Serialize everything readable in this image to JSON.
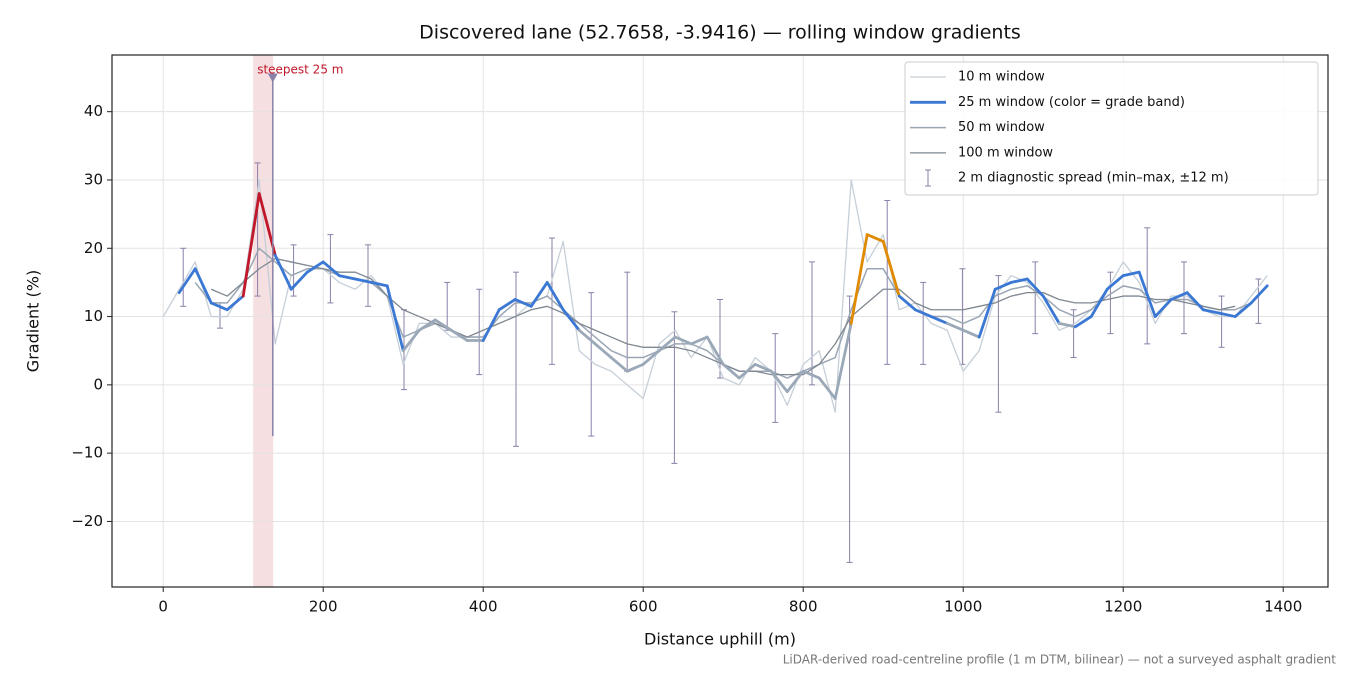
{
  "chart_data": {
    "type": "line",
    "title": "Discovered lane (52.7658, -3.9416) — rolling window gradients",
    "xlabel": "Distance uphill (m)",
    "ylabel": "Gradient (%)",
    "footnote": "LiDAR-derived road-centreline profile (1 m DTM, bilinear) — not a surveyed asphalt gradient",
    "xlim": [
      -64,
      1456
    ],
    "ylim": [
      -29.6,
      48.3
    ],
    "xticks": [
      0,
      200,
      400,
      600,
      800,
      1000,
      1200,
      1400
    ],
    "yticks": [
      {
        "value": -20,
        "label": "−20"
      },
      {
        "value": -10,
        "label": "−10"
      },
      0,
      10,
      20,
      30,
      40
    ],
    "grid": true,
    "legend": "upper right",
    "x": [
      0,
      20,
      40,
      60,
      80,
      100,
      120,
      140,
      160,
      180,
      200,
      220,
      240,
      260,
      280,
      300,
      320,
      340,
      360,
      380,
      400,
      420,
      440,
      460,
      480,
      500,
      520,
      540,
      560,
      580,
      600,
      620,
      640,
      660,
      680,
      700,
      720,
      740,
      760,
      780,
      800,
      820,
      840,
      860,
      880,
      900,
      920,
      940,
      960,
      980,
      1000,
      1020,
      1040,
      1060,
      1080,
      1100,
      1120,
      1140,
      1160,
      1180,
      1200,
      1220,
      1240,
      1260,
      1280,
      1300,
      1320,
      1340,
      1360,
      1380
    ],
    "series": [
      {
        "name": "10 m window",
        "color": "#c6cfd8",
        "width": 1.3,
        "values": [
          10,
          14,
          18,
          10,
          10,
          14,
          30,
          6,
          16,
          17,
          17,
          15,
          14,
          16,
          13,
          3,
          9,
          9,
          7,
          7,
          7,
          10,
          10,
          12,
          13,
          21,
          5,
          3,
          2,
          0,
          -2,
          6,
          8,
          4,
          7,
          1,
          0,
          4,
          2,
          -3,
          3,
          5,
          -4,
          30,
          18,
          22,
          11,
          12,
          9,
          8,
          2,
          5,
          13,
          16,
          15,
          12,
          8,
          9,
          11,
          14,
          18,
          15,
          9,
          13,
          13,
          11,
          10,
          10,
          13,
          16
        ]
      },
      {
        "name": "25 m window (color = grade band)",
        "color": "#3a78d4",
        "width": 2.8,
        "banded": true,
        "values": [
          null,
          13.5,
          17,
          12,
          11,
          13,
          28,
          19,
          14,
          16.5,
          18,
          16,
          15.5,
          15,
          14.5,
          5,
          8,
          9.5,
          8,
          6.5,
          6.5,
          11,
          12.5,
          11.5,
          15,
          11,
          8,
          6,
          4,
          2,
          3,
          5,
          7,
          6,
          7,
          3,
          1,
          3,
          2,
          -1,
          2,
          1,
          -2,
          9,
          22,
          21,
          13,
          11,
          10,
          9,
          8,
          7,
          14,
          15,
          15.5,
          13,
          9,
          8.5,
          10,
          14,
          16,
          16.5,
          10,
          12.5,
          13.5,
          11,
          10.5,
          10,
          12,
          14.5
        ]
      },
      {
        "name": "50 m window",
        "color": "#9aa6b4",
        "width": 1.5,
        "values": [
          null,
          null,
          15,
          12,
          12,
          15,
          20,
          18,
          16,
          17,
          17,
          16,
          15.5,
          15,
          13,
          7,
          8,
          9,
          8,
          7,
          7,
          10,
          12,
          12,
          13,
          11,
          9,
          7,
          5,
          4,
          4,
          5,
          6,
          6,
          5,
          3,
          2,
          2,
          2,
          1,
          2,
          3,
          4,
          11,
          17,
          17,
          13,
          11,
          10,
          10,
          9,
          10,
          13,
          14,
          14.5,
          13,
          11,
          10,
          11,
          13,
          14.5,
          14,
          12,
          12.5,
          12.5,
          11.5,
          11,
          11,
          12,
          null
        ]
      },
      {
        "name": "100 m window",
        "color": "#7f8790",
        "width": 1.3,
        "values": [
          null,
          null,
          null,
          14,
          13,
          15,
          17,
          18.5,
          18,
          17.5,
          17,
          16.5,
          16.5,
          15.5,
          13,
          11,
          10,
          9,
          8,
          7,
          8,
          9,
          10,
          11,
          11.5,
          10.5,
          9,
          8,
          7,
          6,
          5.5,
          5.5,
          5.5,
          5,
          4,
          3,
          2,
          2,
          1.5,
          1.5,
          1.5,
          3,
          6,
          10,
          12,
          14,
          14,
          12,
          11,
          11,
          11,
          11.5,
          12,
          13,
          13.5,
          13.5,
          12.5,
          12,
          12,
          12.5,
          13,
          13,
          12.5,
          12.5,
          12,
          11.5,
          11,
          11.5,
          null,
          null
        ]
      }
    ],
    "band_thresholds": [
      10,
      20,
      25
    ],
    "band_colors": [
      "#9aa8b8",
      "#3a78d4",
      "#e08a00",
      "#c0182a"
    ],
    "errorbars": {
      "name": "2 m diagnostic spread (min–max, ±12 m)",
      "color": "#8a80a8",
      "x": [
        25,
        71,
        118,
        163,
        209,
        256,
        301,
        355,
        395,
        441,
        486,
        535,
        580,
        639,
        696,
        765,
        811,
        858,
        905,
        950,
        999,
        1044,
        1090,
        1138,
        1184,
        1230,
        1276,
        1323,
        1369
      ],
      "low": [
        11.5,
        8.3,
        13,
        13,
        12,
        11.5,
        -0.7,
        8,
        1.5,
        -9,
        3,
        -7.5,
        2,
        -11.5,
        1,
        -5.5,
        0,
        -26,
        3,
        3,
        3,
        -4,
        7.5,
        4,
        7.5,
        6,
        7.5,
        5.5,
        9
      ],
      "high": [
        20,
        12,
        32.5,
        20.5,
        22,
        20.5,
        11,
        15,
        14,
        16.5,
        21.5,
        13.5,
        16.5,
        10.7,
        12.5,
        7.5,
        18,
        13,
        27,
        15,
        17,
        16,
        18,
        11,
        16.5,
        23,
        18,
        13,
        15.5
      ]
    },
    "highlight": {
      "label": "steepest 25 m",
      "color": "#e8b0b4",
      "x": [
        112.5,
        137.5
      ],
      "marker": [
        137,
        45
      ],
      "line": [
        -7.5,
        45
      ]
    }
  }
}
